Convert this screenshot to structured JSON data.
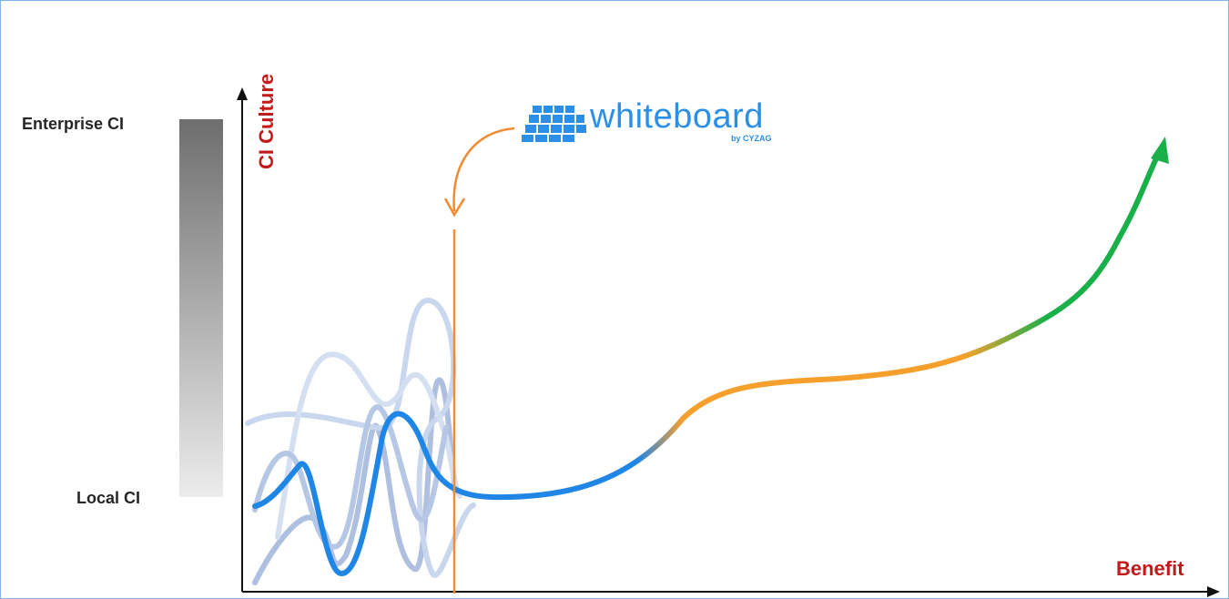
{
  "y_axis": {
    "title": "CI Culture",
    "top_label": "Enterprise CI",
    "bottom_label": "Local CI"
  },
  "x_axis": {
    "title": "Benefit"
  },
  "logo": {
    "name": "whiteboard",
    "byline": "by CYZAG",
    "icon": "grid-logo-icon"
  },
  "colors": {
    "axis": "#111111",
    "axis_title": "#c21a1a",
    "marker": "#f28a30",
    "curve_blue": "#1f86e6",
    "curve_orange": "#f5a02d",
    "curve_green": "#19b04a",
    "logo": "#2a8fe6",
    "frame": "#7fb2e8"
  }
}
